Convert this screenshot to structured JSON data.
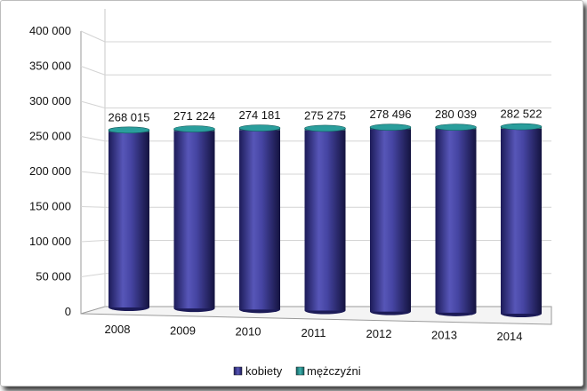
{
  "chart_data": {
    "type": "bar",
    "title": "",
    "xlabel": "",
    "ylabel": "",
    "categories": [
      "2008",
      "2009",
      "2010",
      "2011",
      "2012",
      "2013",
      "2014"
    ],
    "series": [
      {
        "name": "kobiety",
        "values": [
          265000,
          268200,
          271200,
          272300,
          275500,
          277000,
          279500
        ],
        "color": "#3b3a8f"
      },
      {
        "name": "mężczyźni",
        "values": [
          3015,
          3024,
          2981,
          2975,
          2996,
          3039,
          3022
        ],
        "color": "#1f8a8a"
      }
    ],
    "totals": [
      268015,
      271224,
      274181,
      275275,
      278496,
      280039,
      282522
    ],
    "data_labels": [
      "268 015",
      "271 224",
      "274 181",
      "275 275",
      "278 496",
      "280 039",
      "282 522"
    ],
    "y_ticks": [
      "0",
      "50 000",
      "100 000",
      "150 000",
      "200 000",
      "250 000",
      "300 000",
      "350 000",
      "400 000"
    ],
    "ylim": [
      0,
      400000
    ],
    "grid": true,
    "legend_position": "bottom",
    "style": "3d-cylinder"
  }
}
